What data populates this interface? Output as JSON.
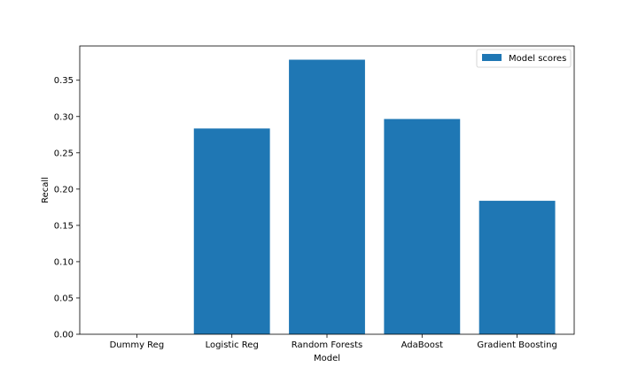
{
  "chart_data": {
    "type": "bar",
    "categories": [
      "Dummy Reg",
      "Logistic Reg",
      "Random Forests",
      "AdaBoost",
      "Gradient Boosting"
    ],
    "series": [
      {
        "name": "Model scores",
        "values": [
          0.0,
          0.2835,
          0.3783,
          0.2966,
          0.1839
        ]
      }
    ],
    "xlabel": "Model",
    "ylabel": "Recall",
    "ylim": [
      0,
      0.3972
    ],
    "yticks": [
      0.0,
      0.05,
      0.1,
      0.15,
      0.2,
      0.25,
      0.3,
      0.35
    ],
    "ytick_labels": [
      "0.00",
      "0.05",
      "0.10",
      "0.15",
      "0.20",
      "0.25",
      "0.30",
      "0.35"
    ],
    "grid": false,
    "legend_position": "top-right",
    "colors": {
      "bar": "#1f77b4",
      "axes": "#000000"
    }
  }
}
